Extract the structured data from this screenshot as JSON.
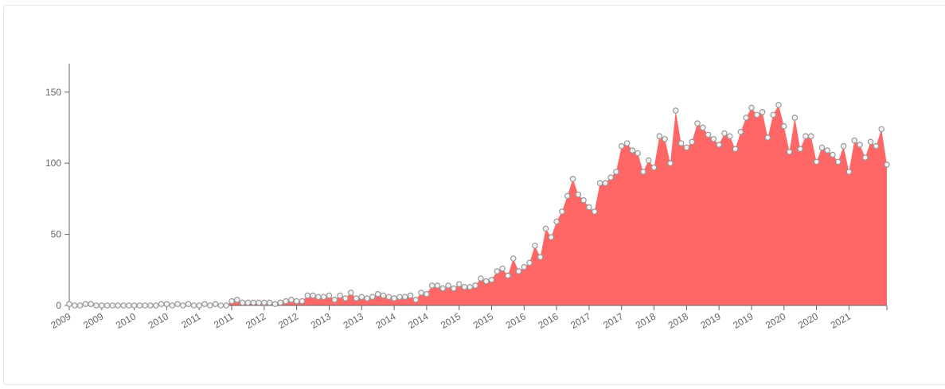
{
  "chart_data": {
    "type": "area",
    "categories": [
      "2009",
      null,
      null,
      null,
      null,
      null,
      "2009",
      null,
      null,
      null,
      null,
      null,
      "2010",
      null,
      null,
      null,
      null,
      null,
      "2010",
      null,
      null,
      null,
      null,
      null,
      "2011",
      null,
      null,
      null,
      null,
      null,
      "2011",
      null,
      null,
      null,
      null,
      null,
      "2012",
      null,
      null,
      null,
      null,
      null,
      "2012",
      null,
      null,
      null,
      null,
      null,
      "2013",
      null,
      null,
      null,
      null,
      null,
      "2013",
      null,
      null,
      null,
      null,
      null,
      "2014",
      null,
      null,
      null,
      null,
      null,
      "2014",
      null,
      null,
      null,
      null,
      null,
      "2015",
      null,
      null,
      null,
      null,
      null,
      "2015",
      null,
      null,
      null,
      null,
      null,
      "2016",
      null,
      null,
      null,
      null,
      null,
      "2016",
      null,
      null,
      null,
      null,
      null,
      "2017",
      null,
      null,
      null,
      null,
      null,
      "2017",
      null,
      null,
      null,
      null,
      null,
      "2018",
      null,
      null,
      null,
      null,
      null,
      "2018",
      null,
      null,
      null,
      null,
      null,
      "2019",
      null,
      null,
      null,
      null,
      null,
      "2019",
      null,
      null,
      null,
      null,
      null,
      "2020",
      null,
      null,
      null,
      null,
      null,
      "2020",
      null,
      null,
      null,
      null,
      null,
      "2021",
      null,
      null,
      null,
      null,
      null,
      null,
      null
    ],
    "values": [
      1,
      0,
      0,
      1,
      1,
      0,
      0,
      0,
      0,
      0,
      0,
      0,
      0,
      0,
      0,
      0,
      0,
      1,
      1,
      0,
      1,
      0,
      1,
      0,
      0,
      1,
      0,
      1,
      0,
      0,
      3,
      4,
      2,
      2,
      2,
      2,
      2,
      2,
      1,
      2,
      3,
      4,
      3,
      3,
      7,
      7,
      6,
      6,
      7,
      4,
      7,
      5,
      9,
      5,
      6,
      5,
      6,
      8,
      7,
      6,
      5,
      6,
      6,
      7,
      4,
      9,
      8,
      14,
      14,
      12,
      14,
      12,
      15,
      13,
      13,
      14,
      19,
      17,
      18,
      24,
      26,
      21,
      33,
      24,
      27,
      30,
      42,
      34,
      54,
      48,
      59,
      66,
      77,
      89,
      78,
      74,
      69,
      66,
      86,
      86,
      90,
      94,
      112,
      114,
      109,
      107,
      94,
      102,
      97,
      119,
      117,
      100,
      137,
      114,
      111,
      115,
      128,
      125,
      120,
      117,
      113,
      121,
      119,
      110,
      122,
      132,
      139,
      134,
      136,
      118,
      134,
      141,
      126,
      108,
      132,
      110,
      119,
      119,
      101,
      111,
      109,
      106,
      101,
      112,
      94,
      116,
      113,
      104,
      115,
      112,
      124,
      99
    ],
    "color": "#ff6666",
    "ylim": [
      0,
      170
    ],
    "yticks": [
      0,
      50,
      100,
      150
    ]
  }
}
